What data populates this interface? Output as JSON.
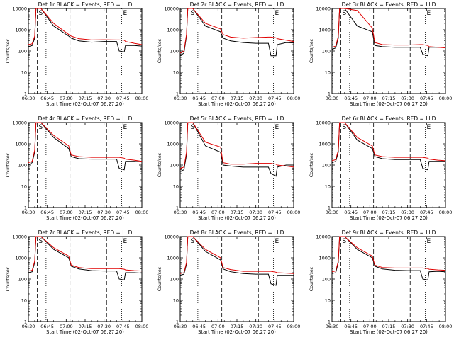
{
  "colors": {
    "events": "#000000",
    "lld": "#e00000",
    "background": "#ffffff"
  },
  "chart_data": {
    "type": "line",
    "layout": "3x3 grid",
    "x_ticks": [
      "06:30",
      "06:45",
      "07:00",
      "07:15",
      "07:30",
      "07:45",
      "08:00"
    ],
    "x_range_minutes": [
      0,
      90
    ],
    "xlabel": "Start Time (02-Oct-07 06:27:20)",
    "ylabel": "Counts/sec",
    "y_scale": "log",
    "y_range": [
      1,
      10000
    ],
    "y_ticks": [
      "1",
      "10",
      "100",
      "1000",
      "10000"
    ],
    "markers": [
      {
        "label": "S",
        "x_minutes": 7,
        "style": "dashed"
      },
      {
        "label": "",
        "x_minutes": 14,
        "style": "dotted"
      },
      {
        "label": "",
        "x_minutes": 33,
        "style": "dashed"
      },
      {
        "label": "",
        "x_minutes": 62,
        "style": "dashed"
      },
      {
        "label": "E",
        "x_minutes": 74,
        "style": "dotted"
      }
    ],
    "panels": [
      {
        "title": "Det 1r BLACK = Events, RED = LLD",
        "events_baseline": 180,
        "lld_baseline": 230,
        "lld_step_min": 45,
        "events": {
          "x": [
            0,
            3,
            5,
            6,
            10,
            20,
            32,
            34,
            40,
            50,
            60,
            70,
            72,
            76,
            77,
            84,
            90
          ],
          "y": [
            160,
            180,
            400,
            10000,
            10000,
            1500,
            500,
            400,
            300,
            260,
            280,
            280,
            100,
            90,
            180,
            180,
            170
          ]
        },
        "lld": {
          "x": [
            0,
            3,
            5,
            6,
            10,
            20,
            32,
            34,
            40,
            50,
            60,
            70,
            72,
            76,
            77,
            84,
            90
          ],
          "y": [
            200,
            220,
            500,
            10000,
            10000,
            2000,
            600,
            500,
            380,
            330,
            340,
            330,
            330,
            320,
            280,
            230,
            200
          ]
        }
      },
      {
        "title": "Det 2r BLACK = Events, RED = LLD",
        "events_baseline": 280,
        "lld_baseline": 400,
        "lld_step_min": 45,
        "events": {
          "x": [
            0,
            3,
            5,
            6,
            10,
            20,
            32,
            34,
            40,
            50,
            60,
            70,
            72,
            76,
            77,
            84,
            90
          ],
          "y": [
            60,
            80,
            500,
            10000,
            10000,
            1500,
            800,
            400,
            300,
            250,
            230,
            230,
            60,
            60,
            200,
            250,
            240
          ]
        },
        "lld": {
          "x": [
            0,
            3,
            5,
            6,
            10,
            20,
            32,
            34,
            40,
            50,
            60,
            70,
            72,
            76,
            77,
            84,
            90
          ],
          "y": [
            80,
            100,
            600,
            10000,
            10000,
            2000,
            1100,
            600,
            450,
            400,
            430,
            450,
            450,
            420,
            380,
            320,
            280
          ]
        }
      },
      {
        "title": "Det 3r BLACK = Events, RED = LLD",
        "events_baseline": 150,
        "lld_baseline": 200,
        "lld_step_min": 45,
        "events": {
          "x": [
            0,
            3,
            5,
            6,
            10,
            20,
            32,
            34,
            40,
            50,
            60,
            70,
            72,
            76,
            77,
            84,
            90
          ],
          "y": [
            120,
            140,
            400,
            10000,
            10000,
            1500,
            800,
            180,
            160,
            150,
            150,
            150,
            70,
            60,
            150,
            150,
            150
          ]
        },
        "lld": {
          "x": [
            0,
            3,
            5,
            6,
            10,
            20,
            32,
            34,
            40,
            50,
            60,
            70,
            72,
            76,
            77,
            84,
            90
          ],
          "y": [
            150,
            170,
            500,
            10000,
            10000,
            8000,
            1200,
            250,
            200,
            190,
            190,
            200,
            200,
            180,
            160,
            150,
            140
          ]
        }
      },
      {
        "title": "Det 4r BLACK = Events, RED = LLD",
        "events_baseline": 160,
        "lld_baseline": 190,
        "lld_step_min": 45,
        "events": {
          "x": [
            0,
            3,
            5,
            6,
            10,
            20,
            32,
            34,
            40,
            50,
            60,
            70,
            72,
            76,
            77,
            84,
            90
          ],
          "y": [
            100,
            130,
            400,
            10000,
            10000,
            2000,
            600,
            250,
            200,
            190,
            190,
            190,
            70,
            60,
            150,
            150,
            140
          ]
        },
        "lld": {
          "x": [
            0,
            3,
            5,
            6,
            10,
            20,
            32,
            34,
            40,
            50,
            60,
            70,
            72,
            76,
            77,
            84,
            90
          ],
          "y": [
            130,
            150,
            500,
            10000,
            10000,
            2500,
            800,
            300,
            250,
            230,
            230,
            230,
            230,
            210,
            190,
            170,
            150
          ]
        }
      },
      {
        "title": "Det 5r BLACK = Events, RED = LLD",
        "events_baseline": 90,
        "lld_baseline": 130,
        "lld_step_min": 45,
        "events": {
          "x": [
            0,
            3,
            5,
            6,
            10,
            20,
            32,
            34,
            40,
            50,
            60,
            70,
            72,
            76,
            77,
            84,
            90
          ],
          "y": [
            50,
            60,
            300,
            10000,
            10000,
            800,
            400,
            100,
            90,
            80,
            80,
            80,
            40,
            30,
            80,
            100,
            100
          ]
        },
        "lld": {
          "x": [
            0,
            3,
            5,
            6,
            10,
            20,
            32,
            34,
            40,
            50,
            60,
            70,
            72,
            76,
            77,
            84,
            90
          ],
          "y": [
            70,
            80,
            400,
            10000,
            10000,
            1200,
            700,
            130,
            110,
            110,
            120,
            120,
            120,
            110,
            100,
            90,
            80
          ]
        }
      },
      {
        "title": "Det 6r BLACK = Events, RED = LLD",
        "events_baseline": 150,
        "lld_baseline": 180,
        "lld_step_min": 45,
        "events": {
          "x": [
            0,
            3,
            5,
            6,
            10,
            20,
            32,
            34,
            40,
            50,
            60,
            70,
            72,
            76,
            77,
            84,
            90
          ],
          "y": [
            130,
            150,
            400,
            10000,
            10000,
            1500,
            600,
            250,
            200,
            180,
            180,
            180,
            70,
            60,
            150,
            150,
            150
          ]
        },
        "lld": {
          "x": [
            0,
            3,
            5,
            6,
            10,
            20,
            32,
            34,
            40,
            50,
            60,
            70,
            72,
            76,
            77,
            84,
            90
          ],
          "y": [
            160,
            180,
            500,
            10000,
            10000,
            2000,
            800,
            300,
            250,
            230,
            230,
            230,
            230,
            210,
            190,
            170,
            160
          ]
        }
      },
      {
        "title": "Det 7r BLACK = Events, RED = LLD",
        "events_baseline": 200,
        "lld_baseline": 260,
        "lld_step_min": 45,
        "events": {
          "x": [
            0,
            3,
            5,
            6,
            10,
            20,
            32,
            34,
            40,
            50,
            60,
            70,
            72,
            76,
            77,
            84,
            90
          ],
          "y": [
            200,
            220,
            600,
            10000,
            10000,
            2500,
            1000,
            400,
            300,
            250,
            240,
            240,
            100,
            90,
            200,
            200,
            190
          ]
        },
        "lld": {
          "x": [
            0,
            3,
            5,
            6,
            10,
            20,
            32,
            34,
            40,
            50,
            60,
            70,
            72,
            76,
            77,
            84,
            90
          ],
          "y": [
            240,
            260,
            700,
            10000,
            10000,
            3000,
            1200,
            450,
            350,
            310,
            310,
            310,
            310,
            290,
            270,
            250,
            240
          ]
        }
      },
      {
        "title": "Det 8r BLACK = Events, RED = LLD",
        "events_baseline": 150,
        "lld_baseline": 200,
        "lld_step_min": 45,
        "events": {
          "x": [
            0,
            3,
            5,
            6,
            10,
            20,
            32,
            34,
            40,
            50,
            60,
            70,
            72,
            76,
            77,
            84,
            90
          ],
          "y": [
            150,
            170,
            500,
            10000,
            10000,
            2000,
            800,
            300,
            220,
            180,
            170,
            170,
            60,
            50,
            150,
            150,
            150
          ]
        },
        "lld": {
          "x": [
            0,
            3,
            5,
            6,
            10,
            20,
            32,
            34,
            40,
            50,
            60,
            70,
            72,
            76,
            77,
            84,
            90
          ],
          "y": [
            180,
            200,
            600,
            10000,
            10000,
            2500,
            1000,
            350,
            280,
            230,
            230,
            230,
            230,
            210,
            200,
            190,
            180
          ]
        }
      },
      {
        "title": "Det 9r BLACK = Events, RED = LLD",
        "events_baseline": 200,
        "lld_baseline": 260,
        "lld_step_min": 45,
        "events": {
          "x": [
            0,
            3,
            5,
            6,
            10,
            20,
            32,
            34,
            40,
            50,
            60,
            70,
            72,
            76,
            77,
            84,
            90
          ],
          "y": [
            180,
            200,
            600,
            10000,
            10000,
            2500,
            1000,
            400,
            300,
            260,
            250,
            250,
            100,
            90,
            220,
            230,
            220
          ]
        },
        "lld": {
          "x": [
            0,
            3,
            5,
            6,
            10,
            20,
            32,
            34,
            40,
            50,
            60,
            70,
            72,
            76,
            77,
            84,
            90
          ],
          "y": [
            220,
            240,
            700,
            10000,
            10000,
            3000,
            1200,
            450,
            350,
            330,
            330,
            330,
            330,
            310,
            290,
            270,
            260
          ]
        }
      }
    ]
  }
}
